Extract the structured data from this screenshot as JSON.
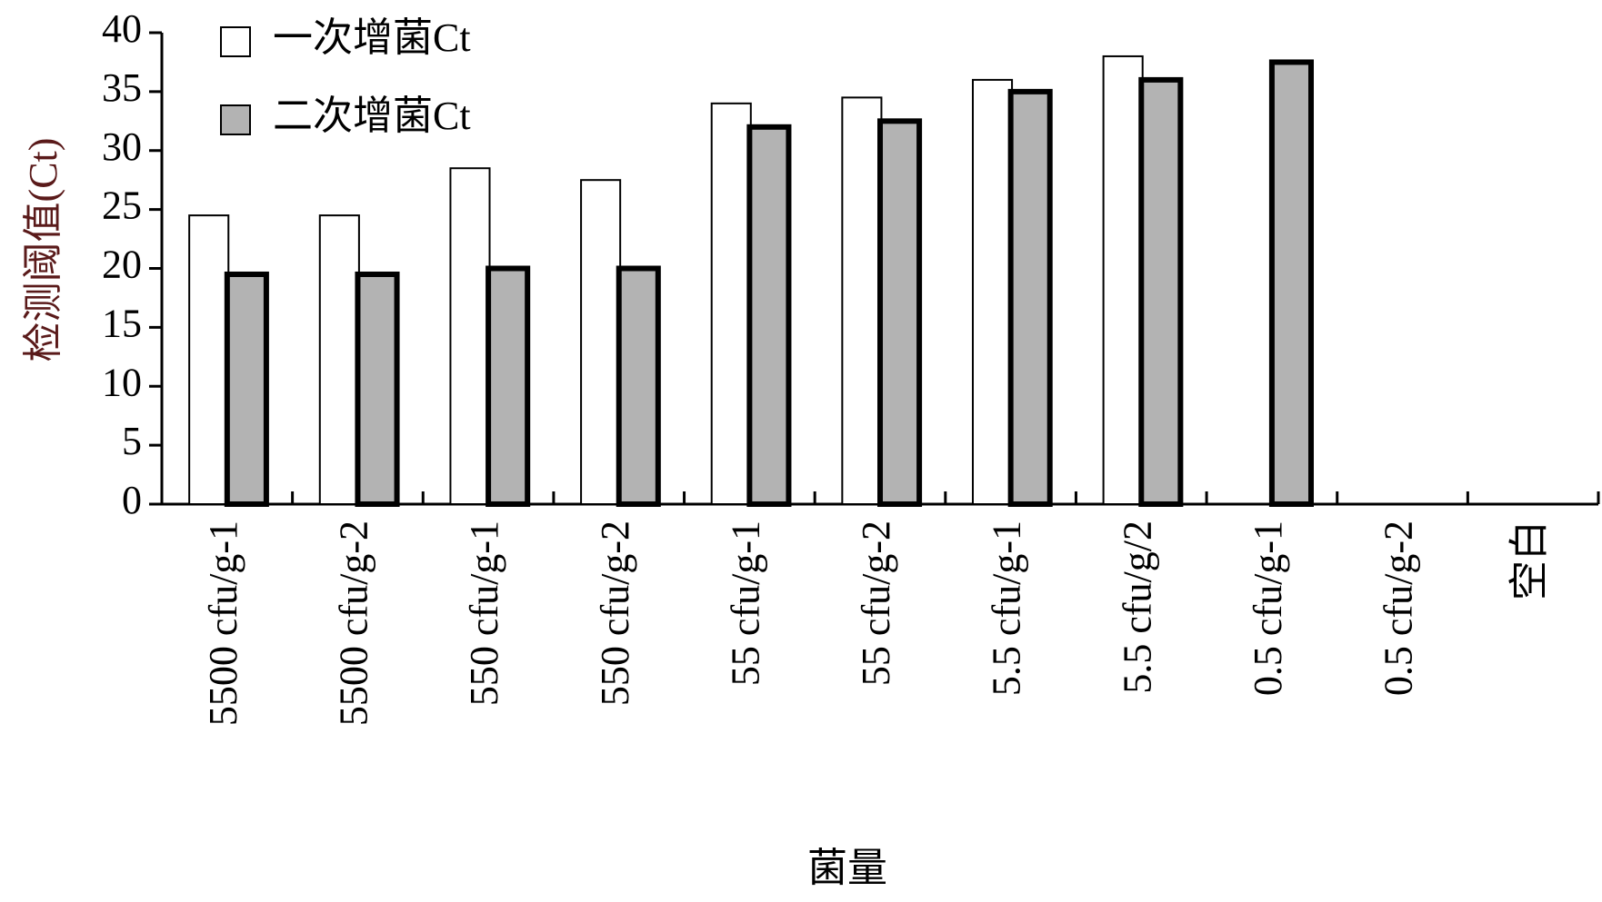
{
  "chart_data": {
    "type": "bar",
    "y_label": "检测阈值(Ct)",
    "x_label": "菌量",
    "categories": [
      "5500 cfu/g-1",
      "5500  cfu/g-2",
      "550 cfu/g-1",
      "550 cfu/g-2",
      "55 cfu/g-1",
      "55 cfu/g-2",
      "5.5 cfu/g-1",
      "5.5 cfu/g/2",
      "0.5 cfu/g-1",
      "0.5 cfu/g-2",
      "空白"
    ],
    "series": [
      {
        "name": "一次增菌Ct",
        "color": "#ffffff",
        "values": [
          24.5,
          24.5,
          28.5,
          27.5,
          34,
          34.5,
          36,
          38,
          null,
          null,
          null
        ]
      },
      {
        "name": "二次增菌Ct",
        "color": "#b3b3b3",
        "values": [
          19.5,
          19.5,
          20,
          20,
          32,
          32.5,
          35,
          36,
          37.5,
          null,
          null
        ]
      }
    ],
    "ylim": [
      0,
      40
    ],
    "yticks": [
      0,
      5,
      10,
      15,
      20,
      25,
      30,
      35,
      40
    ]
  }
}
